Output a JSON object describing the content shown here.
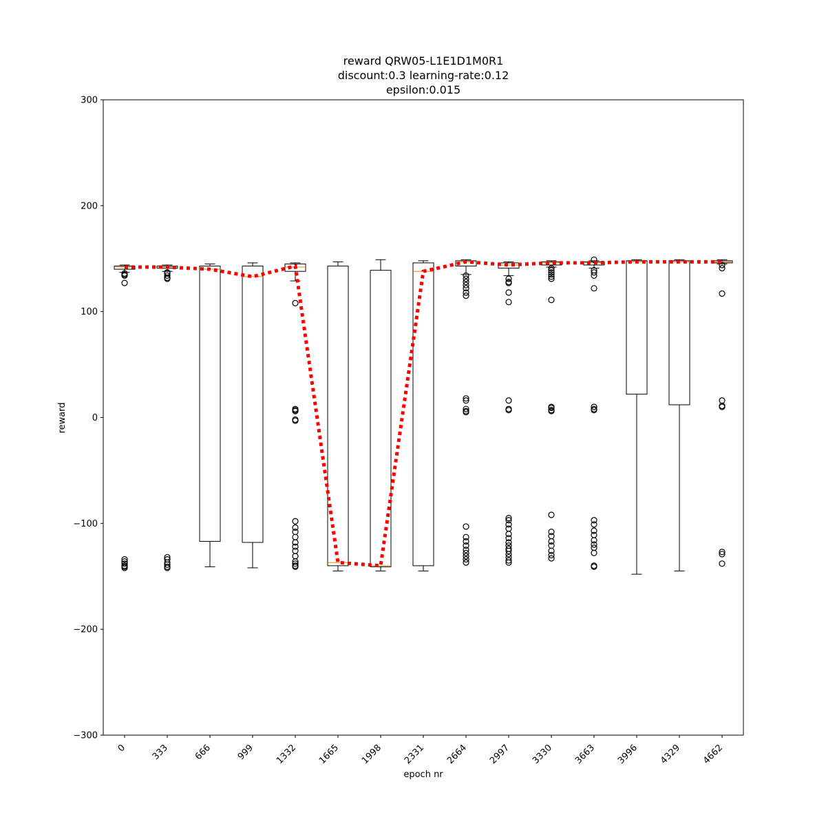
{
  "chart_data": {
    "type": "box",
    "title_lines": [
      "reward QRW05-L1E1D1M0R1",
      "discount:0.3 learning-rate:0.12",
      "epsilon:0.015"
    ],
    "xlabel": "epoch nr",
    "ylabel": "reward",
    "ylim": [
      -300,
      300
    ],
    "yticks": [
      -300,
      -200,
      -100,
      0,
      100,
      200,
      300
    ],
    "yticklabels": [
      "−300",
      "−200",
      "−100",
      "0",
      "100",
      "200",
      "300"
    ],
    "categories": [
      "0",
      "333",
      "666",
      "999",
      "1332",
      "1665",
      "1998",
      "2331",
      "2664",
      "2997",
      "3330",
      "3663",
      "3996",
      "4329",
      "4662"
    ],
    "grid": false,
    "legend": "none",
    "colors": {
      "box": "#000000",
      "median": "#ff7f0e",
      "mean_line": "#ff0000"
    },
    "boxes": [
      {
        "q1": 140,
        "median": 142,
        "q3": 143,
        "whisker_low": 137,
        "whisker_high": 144,
        "fliers": [
          134,
          135,
          136,
          127,
          -134,
          -136,
          -138,
          -140,
          -141,
          -142
        ]
      },
      {
        "q1": 141,
        "median": 142,
        "q3": 143,
        "whisker_low": 138,
        "whisker_high": 144,
        "fliers": [
          131,
          132,
          134,
          136,
          137,
          -132,
          -134,
          -137,
          -139,
          -141,
          -142
        ]
      },
      {
        "q1": -117,
        "median": 140,
        "q3": 143,
        "whisker_low": -141,
        "whisker_high": 145,
        "fliers": []
      },
      {
        "q1": -118,
        "median": 133,
        "q3": 143,
        "whisker_low": -142,
        "whisker_high": 146,
        "fliers": []
      },
      {
        "q1": 138,
        "median": 142,
        "q3": 145,
        "whisker_low": 129,
        "whisker_high": 146,
        "fliers": [
          108,
          8,
          7,
          6,
          -2,
          -3,
          -98,
          -104,
          -108,
          -113,
          -118,
          -122,
          -126,
          -131,
          -136,
          -138,
          -140,
          -141
        ]
      },
      {
        "q1": -140,
        "median": -137,
        "q3": 143,
        "whisker_low": -145,
        "whisker_high": 147,
        "fliers": []
      },
      {
        "q1": -141,
        "median": -140,
        "q3": 139,
        "whisker_low": -145,
        "whisker_high": 149,
        "fliers": []
      },
      {
        "q1": -140,
        "median": 138,
        "q3": 146,
        "whisker_low": -145,
        "whisker_high": 148,
        "fliers": []
      },
      {
        "q1": 143,
        "median": 147,
        "q3": 148,
        "whisker_low": 135,
        "whisker_high": 149,
        "fliers": [
          134,
          131,
          128,
          125,
          122,
          118,
          115,
          18,
          16,
          8,
          6,
          5,
          -103,
          -113,
          -117,
          -121,
          -125,
          -128,
          -131,
          -134,
          -137
        ]
      },
      {
        "q1": 141,
        "median": 144,
        "q3": 146,
        "whisker_low": 134,
        "whisker_high": 147,
        "fliers": [
          131,
          128,
          127,
          118,
          109,
          16,
          8,
          7,
          -95,
          -97,
          -101,
          -105,
          -110,
          -114,
          -118,
          -121,
          -124,
          -126,
          -129,
          -132,
          -135,
          -137
        ]
      },
      {
        "q1": 144,
        "median": 146,
        "q3": 147,
        "whisker_low": 142,
        "whisker_high": 148,
        "fliers": [
          141,
          139,
          137,
          135,
          133,
          131,
          111,
          10,
          9,
          7,
          6,
          -92,
          -108,
          -112,
          -117,
          -121,
          -126,
          -130,
          -133
        ]
      },
      {
        "q1": 144,
        "median": 146,
        "q3": 147,
        "whisker_low": 141,
        "whisker_high": 148,
        "fliers": [
          149,
          139,
          137,
          134,
          122,
          10,
          8,
          7,
          -97,
          -101,
          -107,
          -111,
          -116,
          -120,
          -123,
          -128,
          -140,
          -141
        ]
      },
      {
        "q1": 22,
        "median": 147,
        "q3": 148,
        "whisker_low": -148,
        "whisker_high": 149,
        "fliers": []
      },
      {
        "q1": 12,
        "median": 147,
        "q3": 148,
        "whisker_low": -145,
        "whisker_high": 149,
        "fliers": []
      },
      {
        "q1": 146,
        "median": 147,
        "q3": 148,
        "whisker_low": 145,
        "whisker_high": 149,
        "fliers": [
          144,
          141,
          117,
          16,
          11,
          10,
          -127,
          -129,
          -138
        ]
      }
    ],
    "mean_series": {
      "style": "dotted",
      "values": [
        142,
        142,
        140,
        133,
        143,
        -137,
        -140,
        138,
        147,
        144,
        146,
        146,
        147,
        147,
        147
      ]
    }
  }
}
